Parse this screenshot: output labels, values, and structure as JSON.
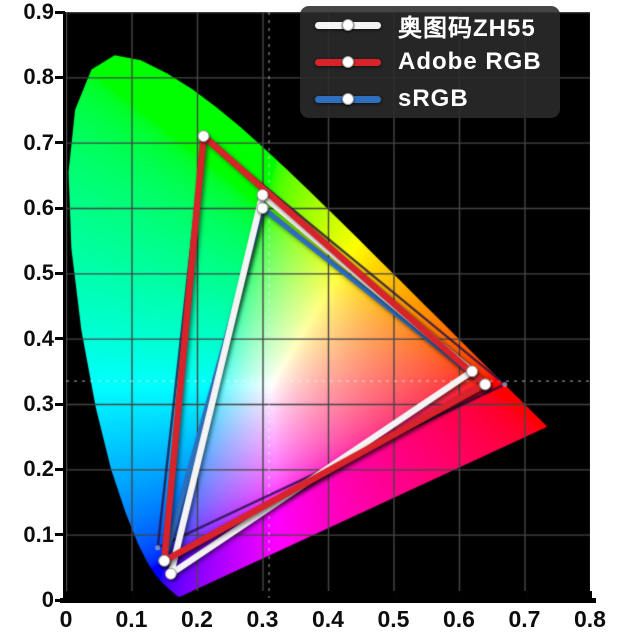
{
  "page": {
    "background_color": "#ffffff",
    "plot_background_color": "#000000",
    "description": "CIE 1931 xy chromaticity diagram comparing projector and standard color gamuts"
  },
  "legend": {
    "background_color": "#2b2b2b",
    "items": [
      {
        "label": "奥图码ZH55",
        "color": "#f4f4f4",
        "marker": "circle"
      },
      {
        "label": "Adobe RGB",
        "color": "#d8232a",
        "marker": "circle"
      },
      {
        "label": "sRGB",
        "color": "#2e6fbe",
        "marker": "circle"
      }
    ]
  },
  "axes": {
    "x": {
      "min": 0,
      "max": 0.8,
      "ticks": [
        "0",
        "0.1",
        "0.2",
        "0.3",
        "0.4",
        "0.5",
        "0.6",
        "0.7",
        "0.8"
      ]
    },
    "y": {
      "min": 0,
      "max": 0.9,
      "ticks": [
        "0.9",
        "0.8",
        "0.7",
        "0.6",
        "0.5",
        "0.4",
        "0.3",
        "0.2",
        "0.1",
        "0"
      ]
    }
  },
  "chart_data": {
    "type": "line",
    "title": "",
    "xlabel": "",
    "ylabel": "",
    "xlim": [
      0,
      0.8
    ],
    "ylim": [
      0,
      0.9
    ],
    "grid": true,
    "grid_step": 0.1,
    "grid_color": "#464646",
    "legend_position": "top-right",
    "background": "cie-1931-chromaticity-horseshoe",
    "white_point_crosshair": {
      "x": 0.31,
      "y": 0.335,
      "style": "white-dashed"
    },
    "series": [
      {
        "name": "奥图码ZH55",
        "color": "#f4f4f4",
        "line_width": 6.5,
        "closed": true,
        "marker": "white-circle",
        "points": [
          [
            0.62,
            0.35
          ],
          [
            0.3,
            0.62
          ],
          [
            0.16,
            0.04
          ]
        ]
      },
      {
        "name": "Adobe RGB",
        "color": "#d8232a",
        "line_width": 6.5,
        "closed": true,
        "marker": "white-circle",
        "points": [
          [
            0.64,
            0.33
          ],
          [
            0.21,
            0.71
          ],
          [
            0.15,
            0.06
          ]
        ]
      },
      {
        "name": "sRGB",
        "color": "#2e6fbe",
        "line_width": 5,
        "closed": true,
        "marker": "white-circle",
        "points": [
          [
            0.64,
            0.33
          ],
          [
            0.3,
            0.6
          ],
          [
            0.15,
            0.06
          ]
        ]
      },
      {
        "name": "unlabeled-dark-gamut",
        "color": "#241046",
        "line_width": 2.5,
        "closed": true,
        "marker": "small-dot",
        "points": [
          [
            0.67,
            0.33
          ],
          [
            0.21,
            0.71
          ],
          [
            0.14,
            0.08
          ]
        ]
      }
    ],
    "draw_order": [
      3,
      2,
      0,
      1
    ],
    "marker_color": "#ffffff"
  }
}
